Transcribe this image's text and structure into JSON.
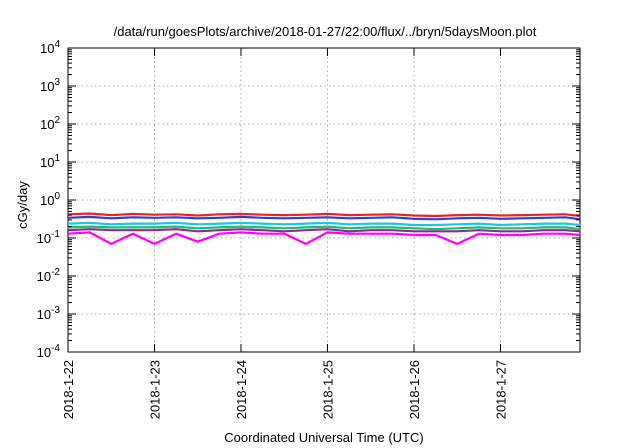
{
  "chart_data": {
    "type": "line",
    "title": "/data/run/goesPlots/archive/2018-01-27/22:00/flux/../bryn/5daysMoon.plot",
    "xlabel": "Coordinated Universal Time (UTC)",
    "ylabel": "cGy/day",
    "yscale": "log",
    "ylim": [
      0.0001,
      10000
    ],
    "xlim": [
      "2018-01-22",
      "2018-01-27 22:00"
    ],
    "grid": true,
    "legend": "none",
    "x_tick_labels": [
      "2018-1-22",
      "2018-1-23",
      "2018-1-24",
      "2018-1-25",
      "2018-1-26",
      "2018-1-27"
    ],
    "y_ticks": [
      {
        "base": "10",
        "exp": "-4",
        "value": 0.0001
      },
      {
        "base": "10",
        "exp": "-3",
        "value": 0.001
      },
      {
        "base": "10",
        "exp": "-2",
        "value": 0.01
      },
      {
        "base": "10",
        "exp": "-1",
        "value": 0.1
      },
      {
        "base": "10",
        "exp": "0",
        "value": 1
      },
      {
        "base": "10",
        "exp": "1",
        "value": 10
      },
      {
        "base": "10",
        "exp": "2",
        "value": 100
      },
      {
        "base": "10",
        "exp": "3",
        "value": 1000
      },
      {
        "base": "10",
        "exp": "4",
        "value": 10000
      }
    ],
    "x_days": [
      0,
      0.25,
      0.5,
      0.75,
      1,
      1.25,
      1.5,
      1.75,
      2,
      2.25,
      2.5,
      2.75,
      3,
      3.25,
      3.5,
      3.75,
      4,
      4.25,
      4.5,
      4.75,
      5,
      5.25,
      5.5,
      5.75,
      5.92
    ],
    "series": [
      {
        "color": "#e8232a",
        "values": [
          0.42,
          0.44,
          0.4,
          0.43,
          0.41,
          0.42,
          0.39,
          0.42,
          0.43,
          0.41,
          0.4,
          0.41,
          0.43,
          0.4,
          0.41,
          0.42,
          0.39,
          0.38,
          0.4,
          0.41,
          0.39,
          0.4,
          0.41,
          0.42,
          0.38
        ]
      },
      {
        "color": "#2b3fd6",
        "values": [
          0.34,
          0.36,
          0.33,
          0.35,
          0.34,
          0.35,
          0.33,
          0.34,
          0.36,
          0.34,
          0.33,
          0.34,
          0.35,
          0.33,
          0.34,
          0.35,
          0.32,
          0.31,
          0.33,
          0.34,
          0.32,
          0.33,
          0.34,
          0.35,
          0.31
        ]
      },
      {
        "color": "#19c7e6",
        "values": [
          0.24,
          0.25,
          0.23,
          0.24,
          0.24,
          0.25,
          0.23,
          0.24,
          0.25,
          0.24,
          0.23,
          0.24,
          0.25,
          0.23,
          0.24,
          0.24,
          0.22,
          0.22,
          0.23,
          0.24,
          0.22,
          0.23,
          0.24,
          0.24,
          0.22
        ]
      },
      {
        "color": "#2bb673",
        "values": [
          0.19,
          0.2,
          0.19,
          0.19,
          0.19,
          0.2,
          0.18,
          0.19,
          0.2,
          0.19,
          0.18,
          0.19,
          0.2,
          0.18,
          0.19,
          0.19,
          0.18,
          0.17,
          0.18,
          0.19,
          0.18,
          0.18,
          0.19,
          0.19,
          0.17
        ]
      },
      {
        "color": "#8b2b8e",
        "values": [
          0.16,
          0.17,
          0.16,
          0.16,
          0.16,
          0.17,
          0.15,
          0.16,
          0.17,
          0.16,
          0.15,
          0.16,
          0.17,
          0.15,
          0.16,
          0.16,
          0.15,
          0.15,
          0.15,
          0.16,
          0.15,
          0.15,
          0.16,
          0.16,
          0.15
        ]
      },
      {
        "color": "#ff00ff",
        "values": [
          0.13,
          0.14,
          0.07,
          0.13,
          0.07,
          0.13,
          0.08,
          0.13,
          0.14,
          0.13,
          0.13,
          0.07,
          0.14,
          0.13,
          0.13,
          0.13,
          0.12,
          0.12,
          0.07,
          0.13,
          0.12,
          0.12,
          0.13,
          0.13,
          0.12
        ]
      }
    ]
  }
}
